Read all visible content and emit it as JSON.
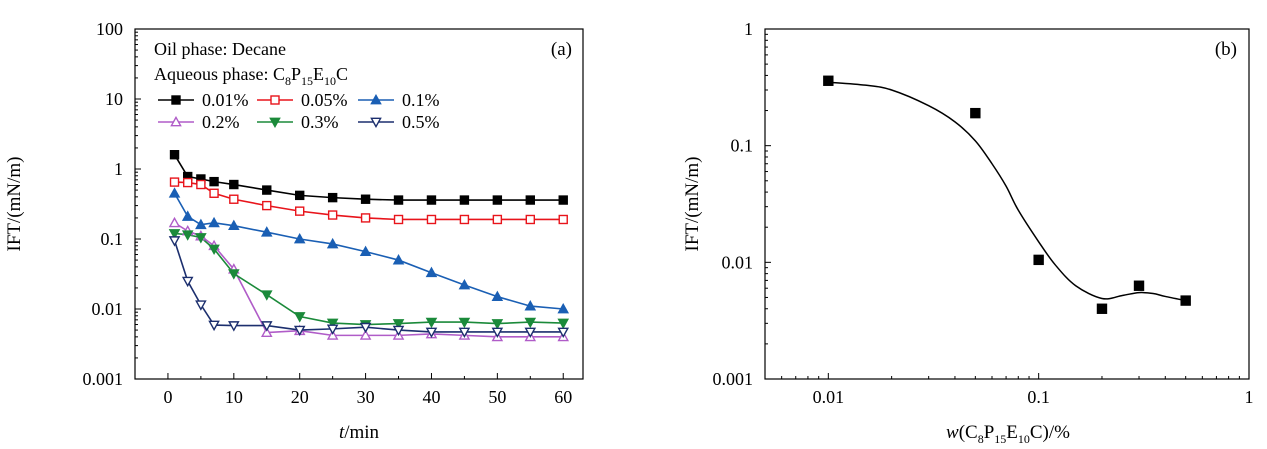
{
  "chart_data": [
    {
      "type": "line",
      "panel_label": "(a)",
      "xlabel": "t/min",
      "ylabel": "IFT/(mN/m)",
      "xlim": [
        -5,
        63
      ],
      "ylim": [
        0.001,
        100
      ],
      "y_scale": "log",
      "x_ticks": [
        "0",
        "10",
        "20",
        "30",
        "40",
        "50",
        "60"
      ],
      "y_ticks": [
        "0.001",
        "0.01",
        "0.1",
        "1",
        "10",
        "100"
      ],
      "annotation_line1": "Oil phase: Decane",
      "annotation_line2": "Aqueous phase: C8P15E10C",
      "legend_placement": "top-left",
      "grid": false,
      "series": [
        {
          "name": "0.01%",
          "color": "#000000",
          "marker": "square-filled",
          "x": [
            1,
            3,
            5,
            7,
            10,
            15,
            20,
            25,
            30,
            35,
            40,
            45,
            50,
            55,
            60
          ],
          "values": [
            1.6,
            0.78,
            0.72,
            0.66,
            0.6,
            0.5,
            0.42,
            0.39,
            0.37,
            0.36,
            0.36,
            0.36,
            0.36,
            0.36,
            0.36
          ]
        },
        {
          "name": "0.05%",
          "color": "#e8141b",
          "marker": "square-open",
          "x": [
            1,
            3,
            5,
            7,
            10,
            15,
            20,
            25,
            30,
            35,
            40,
            45,
            50,
            55,
            60
          ],
          "values": [
            0.65,
            0.64,
            0.6,
            0.45,
            0.37,
            0.3,
            0.25,
            0.22,
            0.2,
            0.19,
            0.19,
            0.19,
            0.19,
            0.19,
            0.19
          ]
        },
        {
          "name": "0.1%",
          "color": "#1a5fb4",
          "marker": "triangle-up-filled",
          "x": [
            1,
            3,
            5,
            7,
            10,
            15,
            20,
            25,
            30,
            35,
            40,
            45,
            50,
            55,
            60
          ],
          "values": [
            0.45,
            0.21,
            0.16,
            0.17,
            0.155,
            0.125,
            0.1,
            0.085,
            0.066,
            0.05,
            0.033,
            0.022,
            0.015,
            0.011,
            0.01
          ]
        },
        {
          "name": "0.2%",
          "color": "#b05cc8",
          "marker": "triangle-up-open",
          "x": [
            1,
            3,
            5,
            7,
            10,
            15,
            20,
            25,
            30,
            35,
            40,
            45,
            50,
            55,
            60
          ],
          "values": [
            0.17,
            0.13,
            0.11,
            0.08,
            0.037,
            0.0046,
            0.0049,
            0.0042,
            0.0042,
            0.0042,
            0.0044,
            0.0042,
            0.004,
            0.004,
            0.004
          ]
        },
        {
          "name": "0.3%",
          "color": "#1b8a3a",
          "marker": "triangle-down-filled",
          "x": [
            1,
            3,
            5,
            7,
            10,
            15,
            20,
            25,
            30,
            35,
            40,
            45,
            50,
            55,
            60
          ],
          "values": [
            0.12,
            0.115,
            0.105,
            0.072,
            0.032,
            0.016,
            0.0078,
            0.0063,
            0.006,
            0.0062,
            0.0065,
            0.0065,
            0.0062,
            0.0065,
            0.0063
          ]
        },
        {
          "name": "0.5%",
          "color": "#1c2f6e",
          "marker": "triangle-down-open",
          "x": [
            1,
            3,
            5,
            7,
            10,
            15,
            20,
            25,
            30,
            35,
            40,
            45,
            50,
            55,
            60
          ],
          "values": [
            0.095,
            0.025,
            0.0115,
            0.0059,
            0.0058,
            0.0058,
            0.005,
            0.0052,
            0.0055,
            0.005,
            0.0047,
            0.0047,
            0.0047,
            0.0047,
            0.0047
          ]
        }
      ]
    },
    {
      "type": "scatter",
      "panel_label": "(b)",
      "xlabel": "w(C8P15E10C)/%",
      "ylabel": "IFT/(mN/m)",
      "xlim": [
        0.005,
        1
      ],
      "ylim": [
        0.001,
        1
      ],
      "x_scale": "log",
      "y_scale": "log",
      "x_ticks": [
        "0.01",
        "0.1",
        "1"
      ],
      "y_ticks": [
        "0.001",
        "0.01",
        "0.1",
        "1"
      ],
      "grid": false,
      "points": {
        "x": [
          0.01,
          0.05,
          0.1,
          0.2,
          0.3,
          0.5
        ],
        "values": [
          0.36,
          0.19,
          0.0105,
          0.004,
          0.0063,
          0.0047
        ]
      },
      "fit_curve": {
        "x": [
          0.01,
          0.015,
          0.02,
          0.03,
          0.04,
          0.05,
          0.06,
          0.07,
          0.08,
          0.1,
          0.12,
          0.15,
          0.2,
          0.25,
          0.3,
          0.35,
          0.4,
          0.5
        ],
        "values": [
          0.35,
          0.33,
          0.3,
          0.22,
          0.16,
          0.11,
          0.07,
          0.045,
          0.028,
          0.015,
          0.0095,
          0.0063,
          0.0049,
          0.0052,
          0.0055,
          0.0054,
          0.0051,
          0.0047
        ]
      }
    }
  ]
}
